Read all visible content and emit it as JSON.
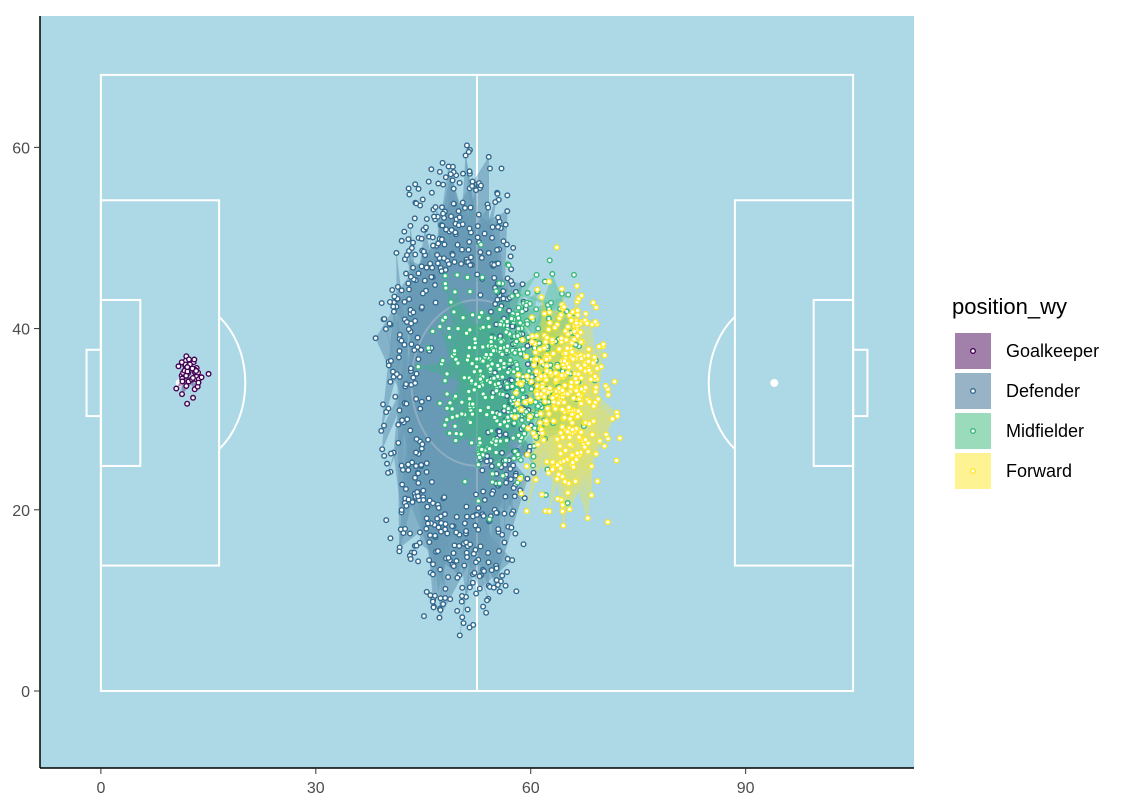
{
  "chart_data": {
    "type": "scatter",
    "title": "",
    "xlabel": "",
    "ylabel": "",
    "xlim": [
      -8.5,
      113.5
    ],
    "ylim": [
      -8.5,
      74.5
    ],
    "x_ticks": [
      0,
      30,
      60,
      90
    ],
    "y_ticks": [
      0,
      20,
      40,
      60
    ],
    "x_tick_labels": [
      "0",
      "30",
      "60",
      "90"
    ],
    "y_tick_labels": [
      "0",
      "20",
      "40",
      "60"
    ],
    "grid": false,
    "background": "#add8e6",
    "pitch": {
      "line_color": "#ffffff",
      "length": 105,
      "width": 68,
      "center_circle_radius": 9.15,
      "penalty_spot_distance": 11
    },
    "legend": {
      "title": "position_wy",
      "placement": "right",
      "entries": [
        {
          "label": "Goalkeeper",
          "color": "#440154"
        },
        {
          "label": "Defender",
          "color": "#31688e"
        },
        {
          "label": "Midfielder",
          "color": "#35b779"
        },
        {
          "label": "Forward",
          "color": "#fde725"
        }
      ]
    },
    "series": [
      {
        "name": "Goalkeeper",
        "color": "#440154",
        "center": [
          12.5,
          35
        ],
        "spread": [
          1.5,
          1.8
        ],
        "points": 45
      },
      {
        "name": "Defender",
        "color": "#31688e",
        "center": [
          50,
          33
        ],
        "spread": [
          7.5,
          13
        ],
        "points": 620
      },
      {
        "name": "Midfielder",
        "color": "#35b779",
        "center": [
          57,
          35
        ],
        "spread": [
          8,
          10
        ],
        "points": 420
      },
      {
        "name": "Forward",
        "color": "#fde725",
        "center": [
          65,
          33
        ],
        "spread": [
          5,
          10
        ],
        "points": 380
      }
    ]
  }
}
